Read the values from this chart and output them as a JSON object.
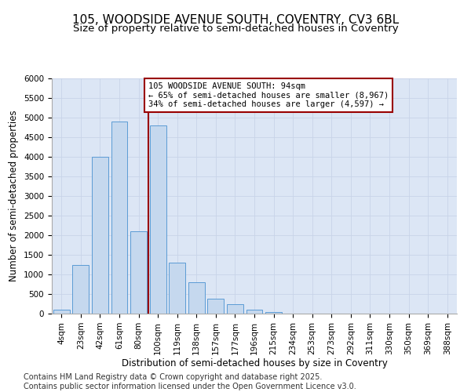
{
  "title_line1": "105, WOODSIDE AVENUE SOUTH, COVENTRY, CV3 6BL",
  "title_line2": "Size of property relative to semi-detached houses in Coventry",
  "xlabel": "Distribution of semi-detached houses by size in Coventry",
  "ylabel": "Number of semi-detached properties",
  "categories": [
    "4sqm",
    "23sqm",
    "42sqm",
    "61sqm",
    "80sqm",
    "100sqm",
    "119sqm",
    "138sqm",
    "157sqm",
    "177sqm",
    "196sqm",
    "215sqm",
    "234sqm",
    "253sqm",
    "273sqm",
    "292sqm",
    "311sqm",
    "330sqm",
    "350sqm",
    "369sqm",
    "388sqm"
  ],
  "values": [
    100,
    1250,
    4000,
    4900,
    2100,
    4800,
    1300,
    800,
    380,
    250,
    100,
    50,
    10,
    5,
    2,
    1,
    0,
    0,
    0,
    0,
    0
  ],
  "bar_color": "#c5d8ee",
  "bar_edge_color": "#5b9bd5",
  "vline_color": "#990000",
  "vline_x": 5.0,
  "annotation_text": "105 WOODSIDE AVENUE SOUTH: 94sqm\n← 65% of semi-detached houses are smaller (8,967)\n34% of semi-detached houses are larger (4,597) →",
  "annotation_box_facecolor": "#ffffff",
  "annotation_box_edgecolor": "#990000",
  "ylim": [
    0,
    6000
  ],
  "yticks": [
    0,
    500,
    1000,
    1500,
    2000,
    2500,
    3000,
    3500,
    4000,
    4500,
    5000,
    5500,
    6000
  ],
  "grid_color": "#c8d4e8",
  "bg_color": "#dce6f5",
  "footer_line1": "Contains HM Land Registry data © Crown copyright and database right 2025.",
  "footer_line2": "Contains public sector information licensed under the Open Government Licence v3.0.",
  "title_fontsize": 11,
  "subtitle_fontsize": 9.5,
  "axis_label_fontsize": 8.5,
  "tick_fontsize": 7.5,
  "footer_fontsize": 7,
  "annotation_fontsize": 7.5
}
